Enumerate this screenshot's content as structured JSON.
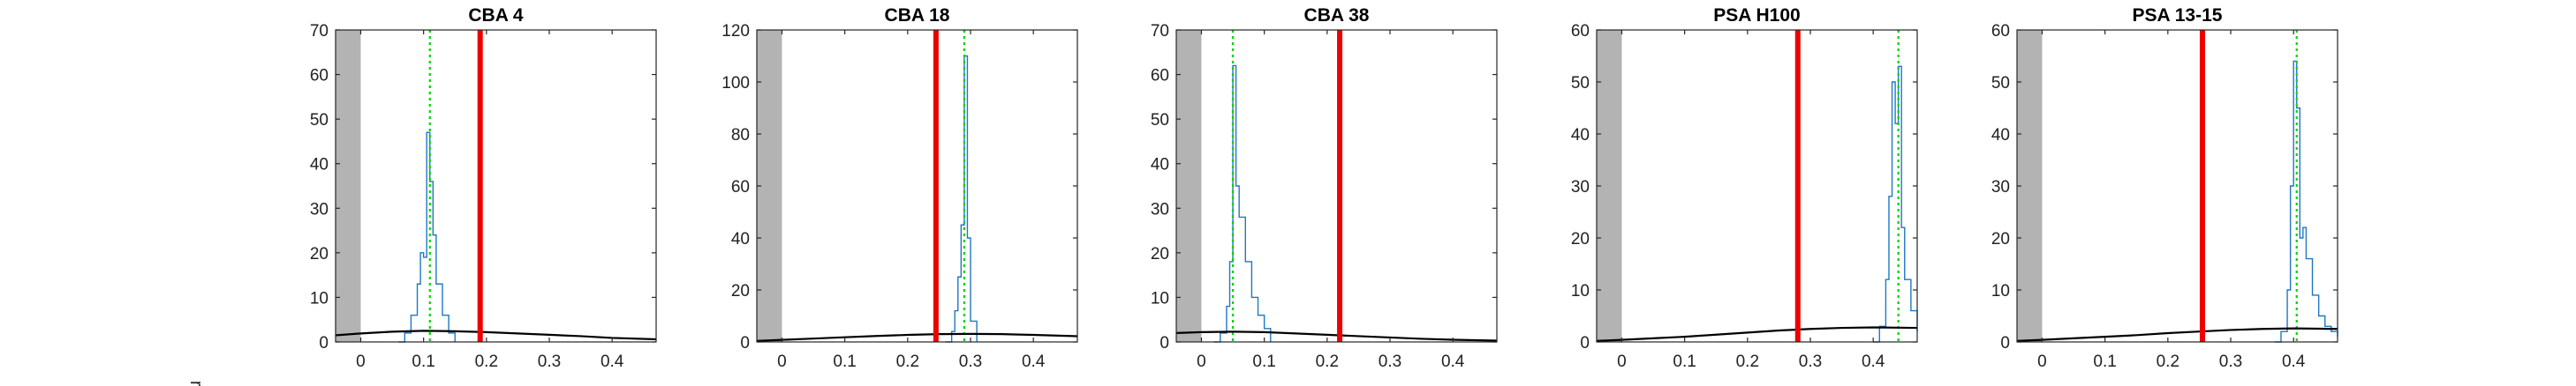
{
  "figure": {
    "side_label": "r)"
  },
  "colors": {
    "shade": "#b3b3b3",
    "histogram": "#1f77c4",
    "mean_line": "#00d400",
    "threshold": "#ee0000",
    "curve": "#000000"
  },
  "chart_data": [
    {
      "type": "line",
      "title": "CBA 4",
      "xlim": [
        -0.04,
        0.47
      ],
      "ylim": [
        0,
        70
      ],
      "x_ticks": [
        0,
        0.1,
        0.2,
        0.3,
        0.4
      ],
      "x_tick_labels": [
        "0",
        "0.1",
        "0.2",
        "0.3",
        "0.4"
      ],
      "y_ticks": [
        0,
        10,
        20,
        30,
        40,
        50,
        60,
        70
      ],
      "y_tick_labels": [
        "0",
        "10",
        "20",
        "30",
        "40",
        "50",
        "60",
        "70"
      ],
      "shaded_region": [
        -0.04,
        0.0
      ],
      "threshold_x": 0.19,
      "mean_x": 0.11,
      "histogram": {
        "x": [
          0.06,
          0.07,
          0.08,
          0.09,
          0.095,
          0.1,
          0.105,
          0.11,
          0.115,
          0.12,
          0.13,
          0.14,
          0.15
        ],
        "y": [
          0,
          2,
          6,
          13,
          20,
          19,
          47,
          36,
          24,
          13,
          6,
          2,
          0
        ]
      },
      "curve": {
        "x": [
          -0.04,
          0.0,
          0.05,
          0.1,
          0.15,
          0.2,
          0.25,
          0.3,
          0.35,
          0.4,
          0.47
        ],
        "y": [
          1.5,
          1.9,
          2.3,
          2.5,
          2.4,
          2.2,
          1.9,
          1.6,
          1.3,
          0.9,
          0.6
        ]
      }
    },
    {
      "type": "line",
      "title": "CBA 18",
      "xlim": [
        -0.04,
        0.47
      ],
      "ylim": [
        0,
        120
      ],
      "x_ticks": [
        0,
        0.1,
        0.2,
        0.3,
        0.4
      ],
      "x_tick_labels": [
        "0",
        "0.1",
        "0.2",
        "0.3",
        "0.4"
      ],
      "y_ticks": [
        0,
        20,
        40,
        60,
        80,
        100,
        120
      ],
      "y_tick_labels": [
        "0",
        "20",
        "40",
        "60",
        "80",
        "100",
        "120"
      ],
      "shaded_region": [
        -0.04,
        0.0
      ],
      "threshold_x": 0.245,
      "mean_x": 0.29,
      "histogram": {
        "x": [
          0.26,
          0.27,
          0.275,
          0.28,
          0.285,
          0.29,
          0.295,
          0.3,
          0.31
        ],
        "y": [
          0,
          4,
          12,
          25,
          45,
          110,
          40,
          8,
          0
        ]
      },
      "curve": {
        "x": [
          -0.04,
          0.0,
          0.05,
          0.1,
          0.15,
          0.2,
          0.25,
          0.3,
          0.35,
          0.4,
          0.47
        ],
        "y": [
          0.4,
          0.8,
          1.3,
          1.8,
          2.3,
          2.7,
          3.0,
          3.1,
          3.0,
          2.7,
          2.2
        ]
      }
    },
    {
      "type": "line",
      "title": "CBA 38",
      "xlim": [
        -0.04,
        0.47
      ],
      "ylim": [
        0,
        70
      ],
      "x_ticks": [
        0,
        0.1,
        0.2,
        0.3,
        0.4
      ],
      "x_tick_labels": [
        "0",
        "0.1",
        "0.2",
        "0.3",
        "0.4"
      ],
      "y_ticks": [
        0,
        10,
        20,
        30,
        40,
        50,
        60,
        70
      ],
      "y_tick_labels": [
        "0",
        "10",
        "20",
        "30",
        "40",
        "50",
        "60",
        "70"
      ],
      "shaded_region": [
        -0.04,
        0.0
      ],
      "threshold_x": 0.22,
      "mean_x": 0.05,
      "histogram": {
        "x": [
          0.02,
          0.03,
          0.04,
          0.045,
          0.05,
          0.055,
          0.06,
          0.07,
          0.08,
          0.09,
          0.1,
          0.11
        ],
        "y": [
          0,
          2,
          8,
          18,
          62,
          35,
          28,
          18,
          10,
          6,
          3,
          0
        ]
      },
      "curve": {
        "x": [
          -0.04,
          0.0,
          0.05,
          0.1,
          0.15,
          0.2,
          0.25,
          0.3,
          0.35,
          0.4,
          0.47
        ],
        "y": [
          2.0,
          2.2,
          2.3,
          2.2,
          1.9,
          1.6,
          1.3,
          1.0,
          0.7,
          0.5,
          0.3
        ]
      }
    },
    {
      "type": "line",
      "title": "PSA H100",
      "xlim": [
        -0.04,
        0.47
      ],
      "ylim": [
        0,
        60
      ],
      "x_ticks": [
        0,
        0.1,
        0.2,
        0.3,
        0.4
      ],
      "x_tick_labels": [
        "0",
        "0.1",
        "0.2",
        "0.3",
        "0.4"
      ],
      "y_ticks": [
        0,
        10,
        20,
        30,
        40,
        50,
        60
      ],
      "y_tick_labels": [
        "0",
        "10",
        "20",
        "30",
        "40",
        "50",
        "60"
      ],
      "shaded_region": [
        -0.04,
        0.0
      ],
      "threshold_x": 0.28,
      "mean_x": 0.44,
      "histogram": {
        "x": [
          0.4,
          0.41,
          0.42,
          0.425,
          0.43,
          0.435,
          0.44,
          0.445,
          0.45,
          0.46,
          0.47
        ],
        "y": [
          0,
          3,
          12,
          28,
          50,
          42,
          53,
          22,
          12,
          6,
          2
        ]
      },
      "curve": {
        "x": [
          -0.04,
          0.0,
          0.05,
          0.1,
          0.15,
          0.2,
          0.25,
          0.3,
          0.35,
          0.4,
          0.47
        ],
        "y": [
          0.2,
          0.4,
          0.7,
          1.0,
          1.4,
          1.8,
          2.2,
          2.5,
          2.7,
          2.8,
          2.7
        ]
      }
    },
    {
      "type": "line",
      "title": "PSA 13-15",
      "xlim": [
        -0.04,
        0.47
      ],
      "ylim": [
        0,
        60
      ],
      "x_ticks": [
        0,
        0.1,
        0.2,
        0.3,
        0.4
      ],
      "x_tick_labels": [
        "0",
        "0.1",
        "0.2",
        "0.3",
        "0.4"
      ],
      "y_ticks": [
        0,
        10,
        20,
        30,
        40,
        50,
        60
      ],
      "y_tick_labels": [
        "0",
        "10",
        "20",
        "30",
        "40",
        "50",
        "60"
      ],
      "shaded_region": [
        -0.04,
        0.0
      ],
      "threshold_x": 0.255,
      "mean_x": 0.405,
      "histogram": {
        "x": [
          0.37,
          0.38,
          0.39,
          0.395,
          0.4,
          0.405,
          0.41,
          0.415,
          0.42,
          0.43,
          0.44,
          0.45,
          0.46,
          0.47
        ],
        "y": [
          0,
          2,
          10,
          30,
          54,
          45,
          20,
          22,
          16,
          9,
          5,
          3,
          2,
          1
        ]
      },
      "curve": {
        "x": [
          -0.04,
          0.0,
          0.05,
          0.1,
          0.15,
          0.2,
          0.25,
          0.3,
          0.35,
          0.4,
          0.47
        ],
        "y": [
          0.2,
          0.4,
          0.7,
          1.0,
          1.3,
          1.7,
          2.0,
          2.3,
          2.5,
          2.6,
          2.5
        ]
      }
    }
  ]
}
